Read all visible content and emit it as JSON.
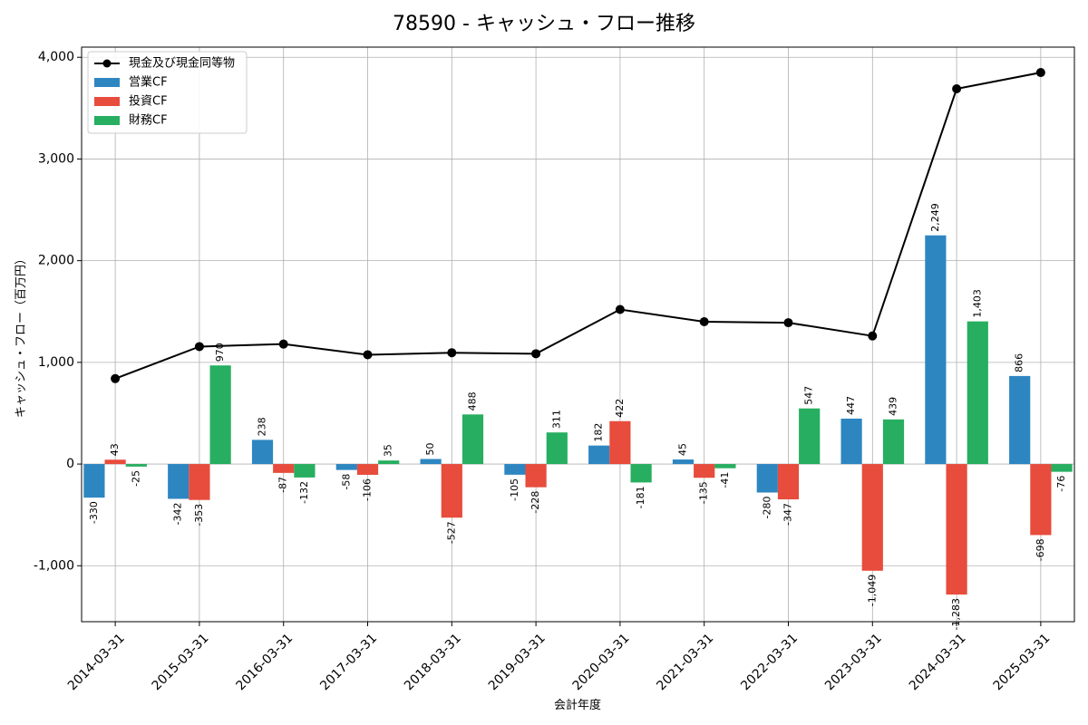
{
  "chart_data": {
    "type": "bar",
    "title": "78590 - キャッシュ・フロー推移",
    "xlabel": "会計年度",
    "ylabel": "キャッシュ・フロー（百万円）",
    "ylim": [
      -1550,
      4100
    ],
    "yticks": [
      -1000,
      0,
      1000,
      2000,
      3000,
      4000
    ],
    "ytick_labels": [
      "-1,000",
      "0",
      "1,000",
      "2,000",
      "3,000",
      "4,000"
    ],
    "grid": true,
    "legend_position": "top-left",
    "categories": [
      "2014-03-31",
      "2015-03-31",
      "2016-03-31",
      "2017-03-31",
      "2018-03-31",
      "2019-03-31",
      "2020-03-31",
      "2021-03-31",
      "2022-03-31",
      "2023-03-31",
      "2024-03-31",
      "2025-03-31"
    ],
    "series": [
      {
        "name": "営業CF",
        "kind": "bar",
        "color": "#2e86c1",
        "values": [
          -330,
          -342,
          238,
          -58,
          50,
          -105,
          182,
          45,
          -280,
          447,
          2249,
          866
        ],
        "labels": [
          "-330",
          "-342",
          "238",
          "-58",
          "50",
          "-105",
          "182",
          "45",
          "-280",
          "447",
          "2,249",
          "866"
        ]
      },
      {
        "name": "投資CF",
        "kind": "bar",
        "color": "#e74c3c",
        "values": [
          43,
          -353,
          -87,
          -106,
          -527,
          -228,
          422,
          -135,
          -347,
          -1049,
          -1283,
          -698
        ],
        "labels": [
          "43",
          "-353",
          "-87",
          "-106",
          "-527",
          "-228",
          "422",
          "-135",
          "-347",
          "-1,049",
          "-1,283",
          "-698"
        ]
      },
      {
        "name": "財務CF",
        "kind": "bar",
        "color": "#27ae60",
        "values": [
          -25,
          970,
          -132,
          35,
          488,
          311,
          -181,
          -41,
          547,
          439,
          1403,
          -76
        ],
        "labels": [
          "-25",
          "970",
          "-132",
          "35",
          "488",
          "311",
          "-181",
          "-41",
          "547",
          "439",
          "1,403",
          "-76"
        ]
      },
      {
        "name": "現金及び現金同等物",
        "kind": "line",
        "color": "#000000",
        "values": [
          840,
          1155,
          1180,
          1075,
          1095,
          1085,
          1520,
          1400,
          1390,
          1260,
          3690,
          3850
        ]
      }
    ]
  }
}
